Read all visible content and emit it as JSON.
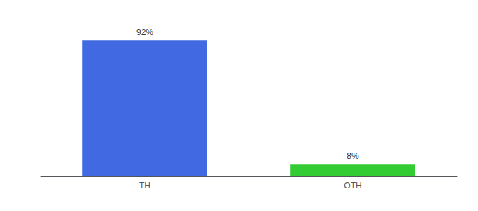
{
  "chart_data": {
    "type": "bar",
    "categories": [
      "TH",
      "OTH"
    ],
    "values": [
      92,
      8
    ],
    "value_labels": [
      "92%",
      "8%"
    ],
    "colors": [
      "#4169E1",
      "#33CC33"
    ],
    "ylim": [
      0,
      105
    ],
    "data_labels": true,
    "tick_labels": "x",
    "grid": false
  }
}
